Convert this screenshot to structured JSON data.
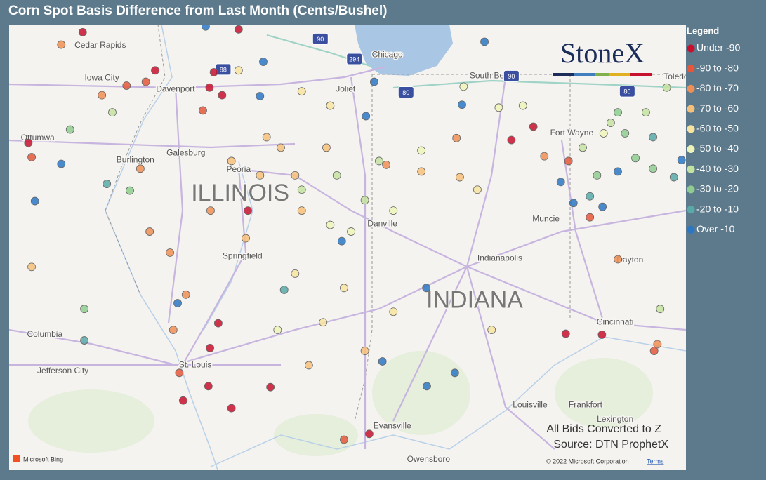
{
  "map": {
    "title": "Corn Spot Basis Difference from Last Month (Cents/Bushel)",
    "lonlim": [
      -94.5,
      -82.17
    ],
    "latlim": [
      37.53,
      42.2
    ],
    "legend": {
      "title": "Legend",
      "entries": [
        {
          "label": "Under -90",
          "color": "#c8102e"
        },
        {
          "label": "-90 to -80",
          "color": "#e4573b"
        },
        {
          "label": "-80 to -70",
          "color": "#ef8f55"
        },
        {
          "label": "-70 to -60",
          "color": "#f6c07a"
        },
        {
          "label": "-60 to -50",
          "color": "#f8e4a0"
        },
        {
          "label": "-50 to -40",
          "color": "#eef3b8"
        },
        {
          "label": "-40 to -30",
          "color": "#c4e2a0"
        },
        {
          "label": "-30 to -20",
          "color": "#8fcc8f"
        },
        {
          "label": "-20 to -10",
          "color": "#58a9a8"
        },
        {
          "label": "Over -10",
          "color": "#2b77c4"
        }
      ]
    },
    "states": [
      {
        "label": "ILLINOIS",
        "lon": -90.29,
        "lat": 40.42
      },
      {
        "label": "INDIANA",
        "lon": -86.02,
        "lat": 39.3
      }
    ],
    "cities": [
      {
        "label": "Cedar Rapids",
        "lon": -92.84,
        "lat": 41.98
      },
      {
        "label": "Iowa City",
        "lon": -92.81,
        "lat": 41.64
      },
      {
        "label": "Davenport",
        "lon": -91.47,
        "lat": 41.52
      },
      {
        "label": "Chicago",
        "lon": -87.61,
        "lat": 41.88
      },
      {
        "label": "South Bend",
        "lon": -85.71,
        "lat": 41.66
      },
      {
        "label": "Toledo",
        "lon": -82.35,
        "lat": 41.65
      },
      {
        "label": "Joliet",
        "lon": -88.37,
        "lat": 41.52
      },
      {
        "label": "Ottumwa",
        "lon": -93.98,
        "lat": 41.01
      },
      {
        "label": "Galesburg",
        "lon": -91.28,
        "lat": 40.85
      },
      {
        "label": "Burlington",
        "lon": -92.2,
        "lat": 40.78
      },
      {
        "label": "Peoria",
        "lon": -90.32,
        "lat": 40.68
      },
      {
        "label": "Fort Wayne",
        "lon": -84.25,
        "lat": 41.06
      },
      {
        "label": "Danville",
        "lon": -87.7,
        "lat": 40.11
      },
      {
        "label": "Muncie",
        "lon": -84.72,
        "lat": 40.16
      },
      {
        "label": "Indianapolis",
        "lon": -85.56,
        "lat": 39.75
      },
      {
        "label": "Springfield",
        "lon": -90.25,
        "lat": 39.77
      },
      {
        "label": "Dayton",
        "lon": -83.19,
        "lat": 39.73
      },
      {
        "label": "Columbia",
        "lon": -93.85,
        "lat": 38.95
      },
      {
        "label": "Jefferson City",
        "lon": -93.52,
        "lat": 38.57
      },
      {
        "label": "St. Louis",
        "lon": -91.11,
        "lat": 38.63
      },
      {
        "label": "Cincinnati",
        "lon": -83.46,
        "lat": 39.08
      },
      {
        "label": "Louisville",
        "lon": -85.01,
        "lat": 38.21
      },
      {
        "label": "Frankfort",
        "lon": -84.0,
        "lat": 38.21
      },
      {
        "label": "Lexington",
        "lon": -83.46,
        "lat": 38.06
      },
      {
        "label": "Evansville",
        "lon": -87.52,
        "lat": 37.99
      },
      {
        "label": "Owensboro",
        "lon": -86.86,
        "lat": 37.64
      }
    ],
    "shields": [
      {
        "label": "90",
        "lon": -88.83,
        "lat": 42.05
      },
      {
        "label": "294",
        "lon": -88.21,
        "lat": 41.84
      },
      {
        "label": "88",
        "lon": -90.6,
        "lat": 41.73
      },
      {
        "label": "80",
        "lon": -87.27,
        "lat": 41.49
      },
      {
        "label": "90",
        "lon": -85.35,
        "lat": 41.66
      },
      {
        "label": "80",
        "lon": -83.24,
        "lat": 41.5
      }
    ],
    "points": [
      {
        "lon": -90.77,
        "lat": 41.7,
        "class": 0
      },
      {
        "lon": -90.62,
        "lat": 41.46,
        "class": 0
      },
      {
        "lon": -91.84,
        "lat": 41.72,
        "class": 0
      },
      {
        "lon": -90.85,
        "lat": 41.54,
        "class": 0
      },
      {
        "lon": -90.69,
        "lat": 39.07,
        "class": 0
      },
      {
        "lon": -90.87,
        "lat": 38.41,
        "class": 0
      },
      {
        "lon": -90.45,
        "lat": 38.18,
        "class": 0
      },
      {
        "lon": -89.74,
        "lat": 38.4,
        "class": 0
      },
      {
        "lon": -87.94,
        "lat": 37.91,
        "class": 0
      },
      {
        "lon": -84.36,
        "lat": 38.96,
        "class": 0
      },
      {
        "lon": -83.7,
        "lat": 38.95,
        "class": 0
      },
      {
        "lon": -85.35,
        "lat": 40.99,
        "class": 0
      },
      {
        "lon": -84.95,
        "lat": 41.13,
        "class": 0
      },
      {
        "lon": -94.15,
        "lat": 40.96,
        "class": 0
      },
      {
        "lon": -93.16,
        "lat": 42.12,
        "class": 0
      },
      {
        "lon": -90.32,
        "lat": 42.15,
        "class": 0
      },
      {
        "lon": -90.15,
        "lat": 40.25,
        "class": 0
      },
      {
        "lon": -91.33,
        "lat": 38.26,
        "class": 0
      },
      {
        "lon": -90.84,
        "lat": 38.81,
        "class": 0
      },
      {
        "lon": -92.36,
        "lat": 41.56,
        "class": 1
      },
      {
        "lon": -90.97,
        "lat": 41.3,
        "class": 1
      },
      {
        "lon": -92.01,
        "lat": 41.6,
        "class": 1
      },
      {
        "lon": -94.09,
        "lat": 40.81,
        "class": 1
      },
      {
        "lon": -83.92,
        "lat": 40.18,
        "class": 1
      },
      {
        "lon": -82.75,
        "lat": 38.78,
        "class": 1
      },
      {
        "lon": -84.31,
        "lat": 40.77,
        "class": 1
      },
      {
        "lon": -88.4,
        "lat": 37.85,
        "class": 1
      },
      {
        "lon": -91.4,
        "lat": 38.55,
        "class": 1
      },
      {
        "lon": -92.11,
        "lat": 40.69,
        "class": 2
      },
      {
        "lon": -91.57,
        "lat": 39.81,
        "class": 2
      },
      {
        "lon": -91.28,
        "lat": 39.37,
        "class": 2
      },
      {
        "lon": -90.83,
        "lat": 40.25,
        "class": 2
      },
      {
        "lon": -91.94,
        "lat": 40.03,
        "class": 2
      },
      {
        "lon": -93.55,
        "lat": 41.99,
        "class": 2
      },
      {
        "lon": -92.81,
        "lat": 41.46,
        "class": 2
      },
      {
        "lon": -86.35,
        "lat": 41.01,
        "class": 2
      },
      {
        "lon": -87.63,
        "lat": 40.73,
        "class": 2
      },
      {
        "lon": -84.75,
        "lat": 40.82,
        "class": 2
      },
      {
        "lon": -83.41,
        "lat": 39.74,
        "class": 2
      },
      {
        "lon": -82.69,
        "lat": 38.85,
        "class": 2
      },
      {
        "lon": -91.51,
        "lat": 39.0,
        "class": 2
      },
      {
        "lon": -90.45,
        "lat": 40.77,
        "class": 3
      },
      {
        "lon": -89.93,
        "lat": 40.62,
        "class": 3
      },
      {
        "lon": -89.55,
        "lat": 40.91,
        "class": 3
      },
      {
        "lon": -90.19,
        "lat": 39.96,
        "class": 3
      },
      {
        "lon": -89.81,
        "lat": 41.02,
        "class": 3
      },
      {
        "lon": -89.29,
        "lat": 40.62,
        "class": 3
      },
      {
        "lon": -89.17,
        "lat": 40.25,
        "class": 3
      },
      {
        "lon": -86.99,
        "lat": 40.66,
        "class": 3
      },
      {
        "lon": -88.72,
        "lat": 40.91,
        "class": 3
      },
      {
        "lon": -89.04,
        "lat": 38.63,
        "class": 3
      },
      {
        "lon": -88.02,
        "lat": 38.78,
        "class": 3
      },
      {
        "lon": -86.29,
        "lat": 40.6,
        "class": 3
      },
      {
        "lon": -94.09,
        "lat": 39.66,
        "class": 3
      },
      {
        "lon": -88.78,
        "lat": 39.08,
        "class": 4
      },
      {
        "lon": -88.4,
        "lat": 39.44,
        "class": 4
      },
      {
        "lon": -89.29,
        "lat": 39.59,
        "class": 4
      },
      {
        "lon": -87.5,
        "lat": 39.19,
        "class": 4
      },
      {
        "lon": -85.97,
        "lat": 40.47,
        "class": 4
      },
      {
        "lon": -85.71,
        "lat": 39.0,
        "class": 4
      },
      {
        "lon": -89.17,
        "lat": 41.5,
        "class": 4
      },
      {
        "lon": -88.65,
        "lat": 41.35,
        "class": 4
      },
      {
        "lon": -90.32,
        "lat": 41.72,
        "class": 4
      },
      {
        "lon": -88.27,
        "lat": 40.03,
        "class": 5
      },
      {
        "lon": -87.5,
        "lat": 40.25,
        "class": 5
      },
      {
        "lon": -86.99,
        "lat": 40.88,
        "class": 5
      },
      {
        "lon": -85.58,
        "lat": 41.33,
        "class": 5
      },
      {
        "lon": -85.14,
        "lat": 41.35,
        "class": 5
      },
      {
        "lon": -86.22,
        "lat": 41.55,
        "class": 5
      },
      {
        "lon": -88.65,
        "lat": 40.1,
        "class": 5
      },
      {
        "lon": -89.61,
        "lat": 39.0,
        "class": 5
      },
      {
        "lon": -83.67,
        "lat": 41.06,
        "class": 5
      },
      {
        "lon": -89.17,
        "lat": 40.47,
        "class": 6
      },
      {
        "lon": -88.53,
        "lat": 40.62,
        "class": 6
      },
      {
        "lon": -88.02,
        "lat": 40.36,
        "class": 6
      },
      {
        "lon": -87.76,
        "lat": 40.77,
        "class": 6
      },
      {
        "lon": -83.54,
        "lat": 41.17,
        "class": 6
      },
      {
        "lon": -82.9,
        "lat": 41.28,
        "class": 6
      },
      {
        "lon": -84.05,
        "lat": 40.91,
        "class": 6
      },
      {
        "lon": -82.64,
        "lat": 39.22,
        "class": 6
      },
      {
        "lon": -92.62,
        "lat": 41.28,
        "class": 6
      },
      {
        "lon": -82.52,
        "lat": 41.54,
        "class": 6
      },
      {
        "lon": -83.28,
        "lat": 41.06,
        "class": 7
      },
      {
        "lon": -83.09,
        "lat": 40.8,
        "class": 7
      },
      {
        "lon": -83.79,
        "lat": 40.62,
        "class": 7
      },
      {
        "lon": -82.77,
        "lat": 40.69,
        "class": 7
      },
      {
        "lon": -93.13,
        "lat": 39.22,
        "class": 7
      },
      {
        "lon": -93.39,
        "lat": 41.1,
        "class": 7
      },
      {
        "lon": -92.3,
        "lat": 40.46,
        "class": 7
      },
      {
        "lon": -83.41,
        "lat": 41.28,
        "class": 7
      },
      {
        "lon": -89.49,
        "lat": 39.42,
        "class": 8
      },
      {
        "lon": -83.92,
        "lat": 40.4,
        "class": 8
      },
      {
        "lon": -82.39,
        "lat": 40.6,
        "class": 8
      },
      {
        "lon": -93.13,
        "lat": 38.89,
        "class": 8
      },
      {
        "lon": -82.77,
        "lat": 41.02,
        "class": 8
      },
      {
        "lon": -92.72,
        "lat": 40.53,
        "class": 8
      },
      {
        "lon": -91.43,
        "lat": 39.28,
        "class": 9
      },
      {
        "lon": -90.92,
        "lat": 42.18,
        "class": 9
      },
      {
        "lon": -89.87,
        "lat": 41.81,
        "class": 9
      },
      {
        "lon": -89.93,
        "lat": 41.45,
        "class": 9
      },
      {
        "lon": -87.85,
        "lat": 41.6,
        "class": 9
      },
      {
        "lon": -88.0,
        "lat": 41.24,
        "class": 9
      },
      {
        "lon": -88.44,
        "lat": 39.93,
        "class": 9
      },
      {
        "lon": -86.9,
        "lat": 39.44,
        "class": 9
      },
      {
        "lon": -86.38,
        "lat": 38.55,
        "class": 9
      },
      {
        "lon": -86.89,
        "lat": 38.41,
        "class": 9
      },
      {
        "lon": -87.7,
        "lat": 38.67,
        "class": 9
      },
      {
        "lon": -84.45,
        "lat": 40.55,
        "class": 9
      },
      {
        "lon": -84.22,
        "lat": 40.33,
        "class": 9
      },
      {
        "lon": -83.69,
        "lat": 40.29,
        "class": 9
      },
      {
        "lon": -83.41,
        "lat": 40.66,
        "class": 9
      },
      {
        "lon": -94.03,
        "lat": 40.35,
        "class": 9
      },
      {
        "lon": -93.55,
        "lat": 40.74,
        "class": 9
      },
      {
        "lon": -86.25,
        "lat": 41.36,
        "class": 9
      },
      {
        "lon": -85.84,
        "lat": 42.02,
        "class": 9
      },
      {
        "lon": -82.25,
        "lat": 40.78,
        "class": 9
      }
    ],
    "notes": [
      "All Bids Converted to Z",
      "Source: DTN ProphetX"
    ],
    "logo": "StoneX",
    "attribution": "Microsoft Bing",
    "copyright": "© 2022 Microsoft Corporation",
    "terms": "Terms"
  }
}
